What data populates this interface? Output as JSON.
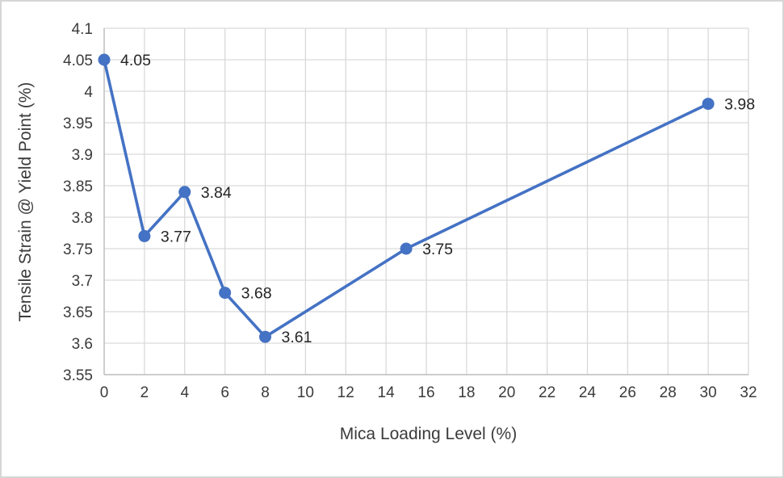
{
  "chart_data": {
    "type": "line",
    "title": "",
    "xlabel": "Mica Loading Level (%)",
    "ylabel": "Tensile Strain @ Yield Point (%)",
    "x": [
      0,
      2,
      4,
      6,
      8,
      15,
      30
    ],
    "y": [
      4.05,
      3.77,
      3.84,
      3.68,
      3.61,
      3.75,
      3.98
    ],
    "point_labels": [
      "4.05",
      "3.77",
      "3.84",
      "3.68",
      "3.61",
      "3.75",
      "3.98"
    ],
    "xlim": [
      0,
      32
    ],
    "ylim": [
      3.55,
      4.1
    ],
    "xticks": [
      0,
      2,
      4,
      6,
      8,
      10,
      12,
      14,
      16,
      18,
      20,
      22,
      24,
      26,
      28,
      30,
      32
    ],
    "xtick_labels": [
      "0",
      "2",
      "4",
      "6",
      "8",
      "10",
      "12",
      "14",
      "16",
      "18",
      "20",
      "22",
      "24",
      "26",
      "28",
      "30",
      "32"
    ],
    "yticks": [
      3.55,
      3.6,
      3.65,
      3.7,
      3.75,
      3.8,
      3.85,
      3.9,
      3.95,
      4.0,
      4.05,
      4.1
    ],
    "ytick_labels": [
      "3.55",
      "3.6",
      "3.65",
      "3.7",
      "3.75",
      "3.8",
      "3.85",
      "3.9",
      "3.95",
      "4",
      "4.05",
      "4.1"
    ],
    "grid": true,
    "legend": "none",
    "colors": {
      "line": "#4472C4",
      "marker": "#4472C4",
      "gridline": "#d9d9d9",
      "axis_line": "#bfbfbf",
      "tick_text": "#3b3b3b",
      "label_text": "#262626",
      "background": "#ffffff",
      "border": "#d6d6d6"
    }
  }
}
